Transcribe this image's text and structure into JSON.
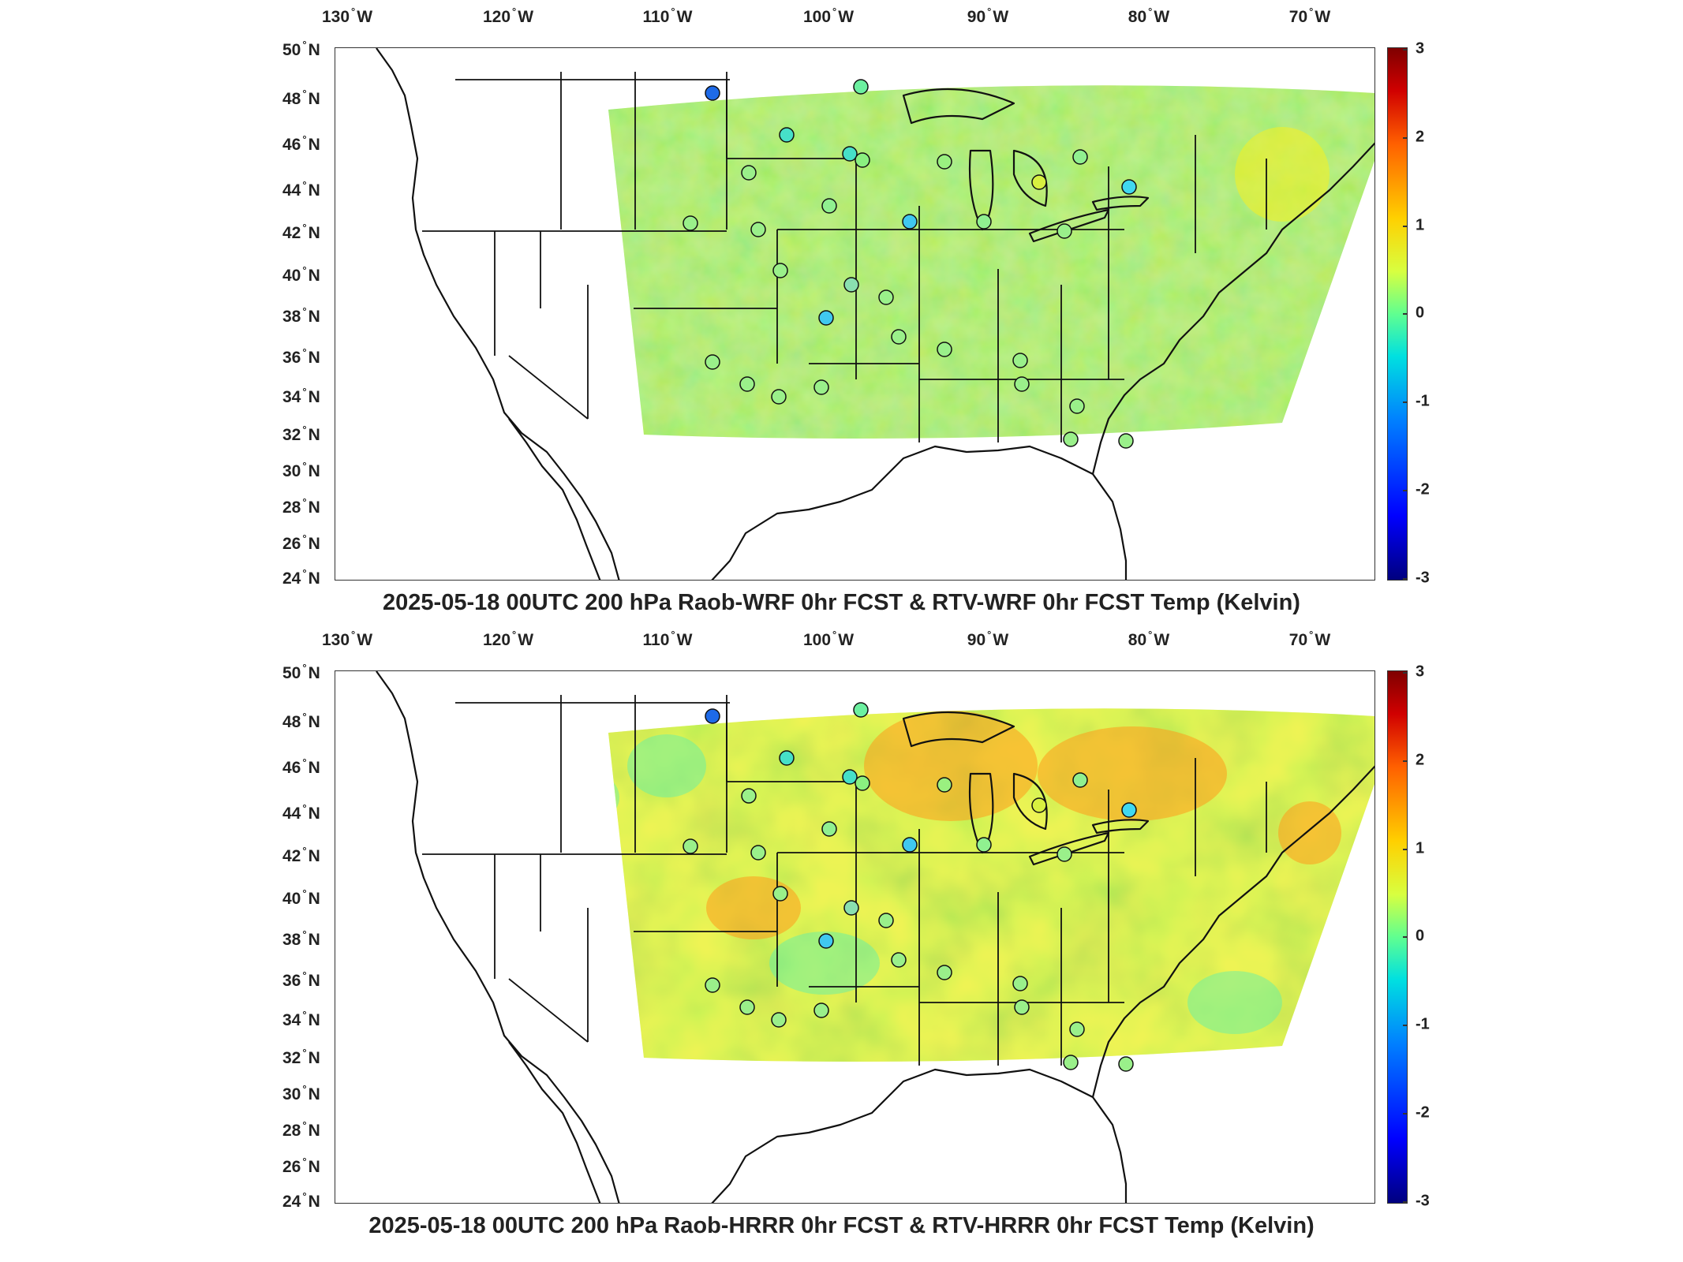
{
  "panels": [
    {
      "id": "wrf",
      "title": "2025-05-18 00UTC 200 hPa Raob-WRF 0hr FCST & RTV-WRF 0hr FCST Temp (Kelvin)"
    },
    {
      "id": "hrrr",
      "title": "2025-05-18 00UTC 200 hPa Raob-HRRR 0hr FCST & RTV-HRRR 0hr FCST Temp (Kelvin)"
    }
  ],
  "longitude_labels": [
    {
      "deg": "130",
      "hemi": "W"
    },
    {
      "deg": "120",
      "hemi": "W"
    },
    {
      "deg": "110",
      "hemi": "W"
    },
    {
      "deg": "100",
      "hemi": "W"
    },
    {
      "deg": "90",
      "hemi": "W"
    },
    {
      "deg": "80",
      "hemi": "W"
    },
    {
      "deg": "70",
      "hemi": "W"
    }
  ],
  "latitude_labels": [
    {
      "deg": "50",
      "hemi": "N"
    },
    {
      "deg": "48",
      "hemi": "N"
    },
    {
      "deg": "46",
      "hemi": "N"
    },
    {
      "deg": "44",
      "hemi": "N"
    },
    {
      "deg": "42",
      "hemi": "N"
    },
    {
      "deg": "40",
      "hemi": "N"
    },
    {
      "deg": "38",
      "hemi": "N"
    },
    {
      "deg": "36",
      "hemi": "N"
    },
    {
      "deg": "34",
      "hemi": "N"
    },
    {
      "deg": "32",
      "hemi": "N"
    },
    {
      "deg": "30",
      "hemi": "N"
    },
    {
      "deg": "28",
      "hemi": "N"
    },
    {
      "deg": "26",
      "hemi": "N"
    },
    {
      "deg": "24",
      "hemi": "N"
    }
  ],
  "colorbar": {
    "ticks": [
      "3",
      "2",
      "1",
      "0",
      "-1",
      "-2",
      "-3"
    ],
    "range": [
      -3,
      3
    ],
    "colors": [
      "#00007f",
      "#0000ff",
      "#00e0e0",
      "#60ff90",
      "#ffd000",
      "#ff6000",
      "#7f0000"
    ]
  },
  "legend_degree_symbol": "°"
}
